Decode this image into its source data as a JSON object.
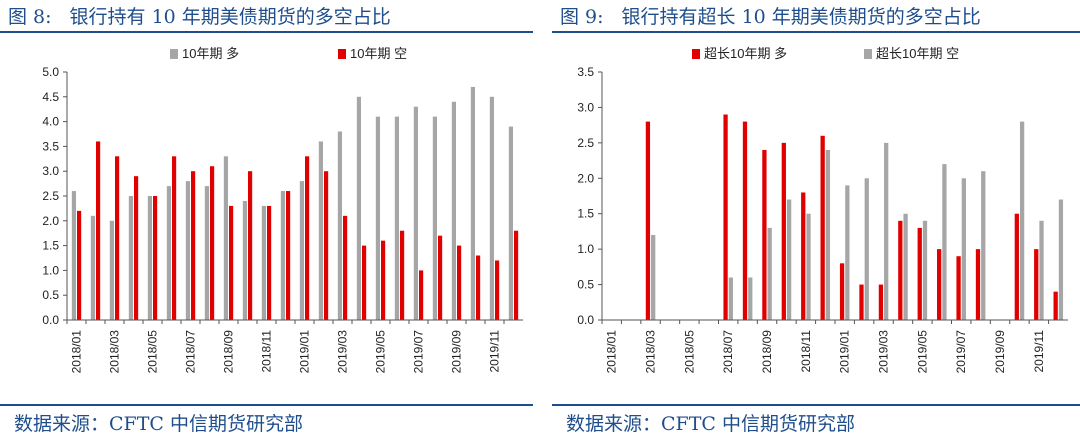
{
  "colors": {
    "gray": "#a6a6a6",
    "red": "#e00000",
    "accent": "#1f4e8c"
  },
  "figures": [
    {
      "fig_num": "图 8:",
      "title": "银行持有 10 年期美债期货的多空占比",
      "source": "数据来源：CFTC  中信期货研究部"
    },
    {
      "fig_num": "图 9:",
      "title": "银行持有超长 10 年期美债期货的多空占比",
      "source": "数据来源：CFTC  中信期货研究部"
    }
  ],
  "chart_data": [
    {
      "type": "bar",
      "title": "",
      "xlabel": "",
      "ylabel": "",
      "ylim": [
        0,
        5
      ],
      "yticks": [
        "0.0",
        "0.5",
        "1.0",
        "1.5",
        "2.0",
        "2.5",
        "3.0",
        "3.5",
        "4.0",
        "4.5",
        "5.0"
      ],
      "legend_position": "top",
      "categories": [
        "2018/01",
        "2018/02",
        "2018/03",
        "2018/04",
        "2018/05",
        "2018/06",
        "2018/07",
        "2018/08",
        "2018/09",
        "2018/10",
        "2018/11",
        "2018/12",
        "2019/01",
        "2019/02",
        "2019/03",
        "2019/04",
        "2019/05",
        "2019/06",
        "2019/07",
        "2019/08",
        "2019/09",
        "2019/10",
        "2019/11",
        "2019/12"
      ],
      "x_tick_labels": [
        "2018/01",
        "",
        "2018/03",
        "",
        "2018/05",
        "",
        "2018/07",
        "",
        "2018/09",
        "",
        "2018/11",
        "",
        "2019/01",
        "",
        "2019/03",
        "",
        "2019/05",
        "",
        "2019/07",
        "",
        "2019/09",
        "",
        "2019/11",
        ""
      ],
      "series": [
        {
          "name": "10年期 多",
          "color": "gray",
          "values": [
            2.6,
            2.1,
            2.0,
            2.5,
            2.5,
            2.7,
            2.8,
            2.7,
            3.3,
            2.4,
            2.3,
            2.6,
            2.8,
            3.6,
            3.8,
            4.5,
            4.1,
            4.1,
            4.3,
            4.1,
            4.4,
            4.7,
            4.5,
            3.9
          ]
        },
        {
          "name": "10年期 空",
          "color": "red",
          "values": [
            2.2,
            3.6,
            3.3,
            2.9,
            2.5,
            3.3,
            3.0,
            3.1,
            2.3,
            3.0,
            2.3,
            2.6,
            3.3,
            3.0,
            2.1,
            1.5,
            1.6,
            1.8,
            1.0,
            1.7,
            1.5,
            1.3,
            1.2,
            1.8
          ]
        }
      ]
    },
    {
      "type": "bar",
      "title": "",
      "xlabel": "",
      "ylabel": "",
      "ylim": [
        0,
        3.5
      ],
      "yticks": [
        "0.0",
        "0.5",
        "1.0",
        "1.5",
        "2.0",
        "2.5",
        "3.0",
        "3.5"
      ],
      "legend_position": "top",
      "categories": [
        "2018/01",
        "2018/02",
        "2018/03",
        "2018/04",
        "2018/05",
        "2018/06",
        "2018/07",
        "2018/08",
        "2018/09",
        "2018/10",
        "2018/11",
        "2018/12",
        "2019/01",
        "2019/02",
        "2019/03",
        "2019/04",
        "2019/05",
        "2019/06",
        "2019/07",
        "2019/08",
        "2019/09",
        "2019/10",
        "2019/11",
        "2019/12"
      ],
      "x_tick_labels": [
        "2018/01",
        "",
        "2018/03",
        "",
        "2018/05",
        "",
        "2018/07",
        "",
        "2018/09",
        "",
        "2018/11",
        "",
        "2019/01",
        "",
        "2019/03",
        "",
        "2019/05",
        "",
        "2019/07",
        "",
        "2019/09",
        "",
        "2019/11",
        ""
      ],
      "series": [
        {
          "name": "超长10年期 多",
          "color": "red",
          "values": [
            0,
            0,
            2.8,
            0,
            0,
            0,
            2.9,
            2.8,
            2.4,
            2.5,
            1.8,
            2.6,
            0.8,
            0.5,
            0.5,
            1.4,
            1.3,
            1.0,
            0.9,
            1.0,
            0,
            1.5,
            1.0,
            0.4
          ]
        },
        {
          "name": "超长10年期 空",
          "color": "gray",
          "values": [
            0,
            0,
            1.2,
            0,
            0,
            0,
            0.6,
            0.6,
            1.3,
            1.7,
            1.5,
            2.4,
            1.9,
            2.0,
            2.5,
            1.5,
            1.4,
            2.2,
            2.0,
            2.1,
            0,
            2.8,
            1.4,
            1.7
          ]
        }
      ]
    }
  ]
}
